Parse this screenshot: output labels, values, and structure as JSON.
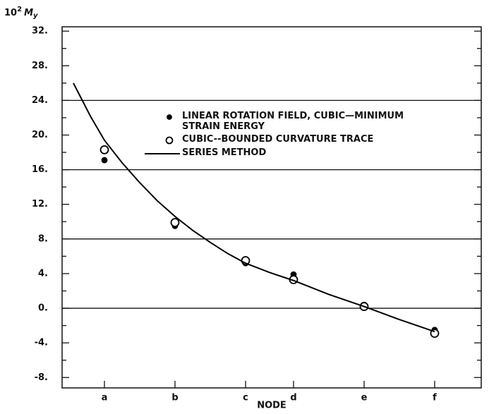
{
  "chart_data": {
    "type": "line",
    "y_label": {
      "base": "10",
      "exponent": "2",
      "symbol": "M",
      "subscript": "y"
    },
    "x_label": "NODE",
    "xlim": [
      0.4,
      6.34
    ],
    "xticks": [
      {
        "value": 1,
        "label": "a"
      },
      {
        "value": 2,
        "label": "b"
      },
      {
        "value": 3,
        "label": "c"
      },
      {
        "value": 3.68,
        "label": "d"
      },
      {
        "value": 4.68,
        "label": "e"
      },
      {
        "value": 5.68,
        "label": "f"
      }
    ],
    "ylim": [
      -9.2,
      32.5
    ],
    "yticks": [
      {
        "value": 32,
        "label": "32."
      },
      {
        "value": 28,
        "label": "28."
      },
      {
        "value": 24,
        "label": "24."
      },
      {
        "value": 20,
        "label": "20."
      },
      {
        "value": 16,
        "label": "16."
      },
      {
        "value": 12,
        "label": "12."
      },
      {
        "value": 8,
        "label": "8."
      },
      {
        "value": 4,
        "label": "4."
      },
      {
        "value": 0,
        "label": "0."
      },
      {
        "value": -4,
        "label": "-4."
      },
      {
        "value": -8,
        "label": "-8."
      }
    ],
    "y_minor_ticks": [
      30,
      26,
      22,
      18,
      14,
      10,
      6,
      2,
      -2,
      -6
    ],
    "grid_lines": [
      24,
      16,
      8,
      0
    ],
    "series": [
      {
        "name": "LINEAR ROTATION FIELD, CUBIC—MINIMUM STRAIN ENERGY",
        "style": "filled-dot",
        "color": "#000000",
        "x": [
          1,
          2,
          3,
          3.68,
          4.68,
          5.68
        ],
        "values": [
          17.1,
          9.5,
          5.2,
          3.9,
          0.4,
          -2.5
        ]
      },
      {
        "name": "CUBIC--BOUNDED CURVATURE TRACE",
        "style": "open-circle",
        "color": "#000000",
        "x": [
          1,
          2,
          3,
          3.68,
          4.68,
          5.68
        ],
        "values": [
          18.3,
          9.9,
          5.5,
          3.3,
          0.2,
          -2.9
        ]
      },
      {
        "name": "SERIES METHOD",
        "style": "line",
        "color": "#000000",
        "x": [
          0.56,
          0.8,
          1,
          1.25,
          1.5,
          1.75,
          2,
          2.25,
          2.5,
          2.75,
          3,
          3.35,
          3.68,
          4.18,
          4.68,
          5.18,
          5.68
        ],
        "values": [
          26,
          22.2,
          19.4,
          16.8,
          14.5,
          12.4,
          10.6,
          9,
          7.6,
          6.3,
          5.2,
          4.1,
          3.2,
          1.6,
          0.2,
          -1.3,
          -2.7
        ]
      }
    ]
  }
}
